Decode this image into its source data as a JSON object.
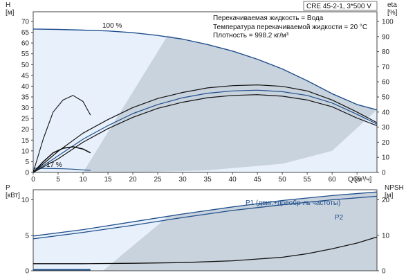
{
  "chart_data": [
    {
      "type": "line",
      "title": "CRE 45-2-1, 3*500 V",
      "info": [
        "Перекачиваемая жидкость = Вода",
        "Температура перекачиваемой жидкости = 20 °C",
        "Плотность = 998.2 кг/м³"
      ],
      "xlabel": "Q [м³/ч]",
      "xticks": [
        0,
        5,
        10,
        15,
        20,
        25,
        30,
        35,
        40,
        45,
        50,
        55,
        60,
        65
      ],
      "xlim": [
        0,
        69
      ],
      "ylabel_left": "H\n[м]",
      "ylim_left": [
        0,
        70
      ],
      "yticks_left": [
        0,
        5,
        10,
        15,
        20,
        25,
        30,
        35,
        40,
        45,
        50,
        55,
        60,
        65,
        70
      ],
      "ylabel_right": "eta\n[%]",
      "ylim_right": [
        0,
        100
      ],
      "yticks_right": [
        0,
        10,
        20,
        30,
        40,
        50,
        60,
        70,
        80,
        90,
        100
      ],
      "grid": false,
      "annotations": [
        "100 %",
        "17 %"
      ],
      "series": [
        {
          "name": "100 %",
          "axis": "left",
          "color": "#1f4e8c",
          "x": [
            0,
            5,
            10,
            15,
            20,
            25,
            30,
            35,
            40,
            45,
            50,
            55,
            60,
            65,
            69
          ],
          "y": [
            66.5,
            66.3,
            66,
            65.6,
            64.8,
            63.5,
            61.8,
            59.3,
            56.3,
            52.5,
            48,
            42.5,
            36.5,
            31.5,
            29
          ]
        },
        {
          "name": "17 %",
          "axis": "left",
          "color": "#1f4e8c",
          "x": [
            0,
            2,
            4,
            6,
            8,
            10,
            11.5
          ],
          "y": [
            1.95,
            1.9,
            1.8,
            1.7,
            1.5,
            1.2,
            1
          ]
        },
        {
          "axis": "right",
          "color": "#111111",
          "x": [
            0,
            5,
            10,
            15,
            20,
            25,
            30,
            35,
            40,
            45,
            50,
            55,
            60,
            65,
            69
          ],
          "y": [
            0,
            14,
            26,
            35,
            43,
            49,
            53,
            56,
            57.5,
            58,
            57,
            54,
            48,
            40,
            33
          ]
        },
        {
          "axis": "right",
          "color": "#1f4e8c",
          "x": [
            0,
            5,
            10,
            15,
            20,
            25,
            30,
            35,
            40,
            45,
            50,
            55,
            60,
            65,
            69
          ],
          "y": [
            0,
            11,
            22,
            31,
            39,
            45,
            49.5,
            52.5,
            54,
            54.5,
            53.5,
            51,
            46,
            38.5,
            32
          ]
        },
        {
          "axis": "right",
          "color": "#111111",
          "x": [
            0,
            5,
            10,
            15,
            20,
            25,
            30,
            35,
            40,
            45,
            50,
            55,
            60,
            65,
            69
          ],
          "y": [
            0,
            9,
            20,
            29,
            36.5,
            42.5,
            46.5,
            49.5,
            51,
            51.5,
            50.5,
            48,
            43.5,
            36,
            31
          ]
        },
        {
          "axis": "right",
          "color": "#111111",
          "x": [
            0,
            2,
            4,
            6,
            8,
            10,
            11.5
          ],
          "y": [
            0,
            22,
            40,
            48,
            51,
            47,
            38
          ]
        },
        {
          "axis": "right",
          "color": "#111111",
          "x": [
            0,
            2,
            4,
            6,
            8,
            10,
            11.5
          ],
          "y": [
            0,
            7,
            13,
            16,
            17,
            15.5,
            13
          ]
        }
      ]
    },
    {
      "type": "line",
      "xlim": [
        0,
        69
      ],
      "ylabel_left": "P\n[кВт]",
      "ylim_left": [
        0,
        12
      ],
      "yticks_left": [
        0,
        5,
        10
      ],
      "ylabel_right": "NPSH\n[м]",
      "ylim_right": [
        0,
        24
      ],
      "yticks_right": [
        0,
        10,
        20
      ],
      "grid": false,
      "series": [
        {
          "name": "P1 (двиг.+преобр-ль частоты)",
          "axis": "left",
          "color": "#1f4e8c",
          "x": [
            0,
            10,
            20,
            30,
            40,
            50,
            60,
            69
          ],
          "y": [
            4.9,
            5.8,
            6.9,
            8.0,
            9.0,
            9.9,
            10.6,
            11.1
          ]
        },
        {
          "name": "P2",
          "axis": "left",
          "color": "#1f4e8c",
          "x": [
            0,
            10,
            20,
            30,
            40,
            50,
            60,
            69
          ],
          "y": [
            4.5,
            5.4,
            6.4,
            7.5,
            8.5,
            9.3,
            10.0,
            10.5
          ]
        },
        {
          "axis": "left",
          "color": "#1f4e8c",
          "x": [
            0,
            5,
            10,
            11.5
          ],
          "y": [
            0.15,
            0.15,
            0.15,
            0.15
          ]
        },
        {
          "axis": "right",
          "color": "#111111",
          "x": [
            0,
            10,
            20,
            30,
            40,
            50,
            55,
            60,
            65,
            69
          ],
          "y": [
            2,
            2,
            2.1,
            2.3,
            2.8,
            3.8,
            4.8,
            6.2,
            7.8,
            9.5
          ]
        }
      ]
    }
  ]
}
